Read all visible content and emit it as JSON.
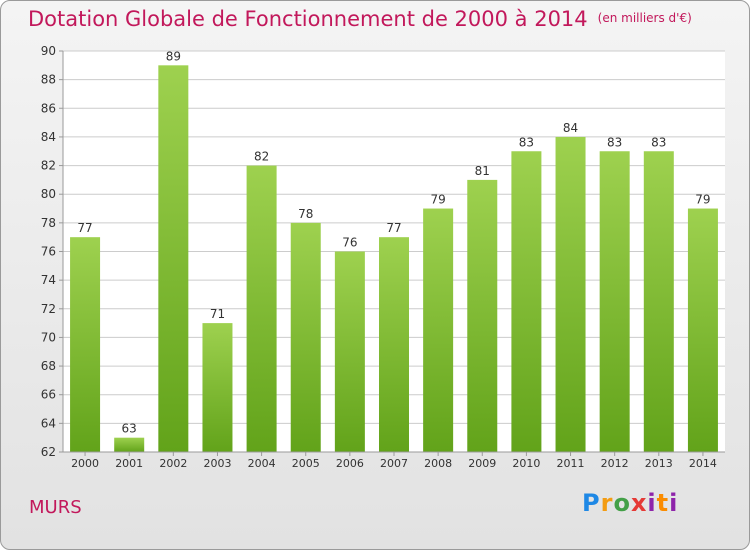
{
  "header": {
    "title": "Dotation Globale de Fonctionnement de 2000 à 2014",
    "unit": "(en milliers d'€)"
  },
  "footer": {
    "commune": "MURS",
    "logo": "Proxiti"
  },
  "colors": {
    "title": "#c2185b",
    "bar_light": "#9ed14f",
    "bar_dark": "#62a31a",
    "grid": "#cccccc"
  },
  "chart_data": {
    "type": "bar",
    "title": "Dotation Globale de Fonctionnement de 2000 à 2014",
    "subtitle": "(en milliers d'€)",
    "categories": [
      "2000",
      "2001",
      "2002",
      "2003",
      "2004",
      "2005",
      "2006",
      "2007",
      "2008",
      "2009",
      "2010",
      "2011",
      "2012",
      "2013",
      "2014"
    ],
    "values": [
      77,
      63,
      89,
      71,
      82,
      78,
      76,
      77,
      79,
      81,
      83,
      84,
      83,
      83,
      79
    ],
    "ylim": [
      62,
      90
    ],
    "yticks": [
      62,
      64,
      66,
      68,
      70,
      72,
      74,
      76,
      78,
      80,
      82,
      84,
      86,
      88,
      90
    ],
    "grid": true,
    "data_labels": true
  }
}
